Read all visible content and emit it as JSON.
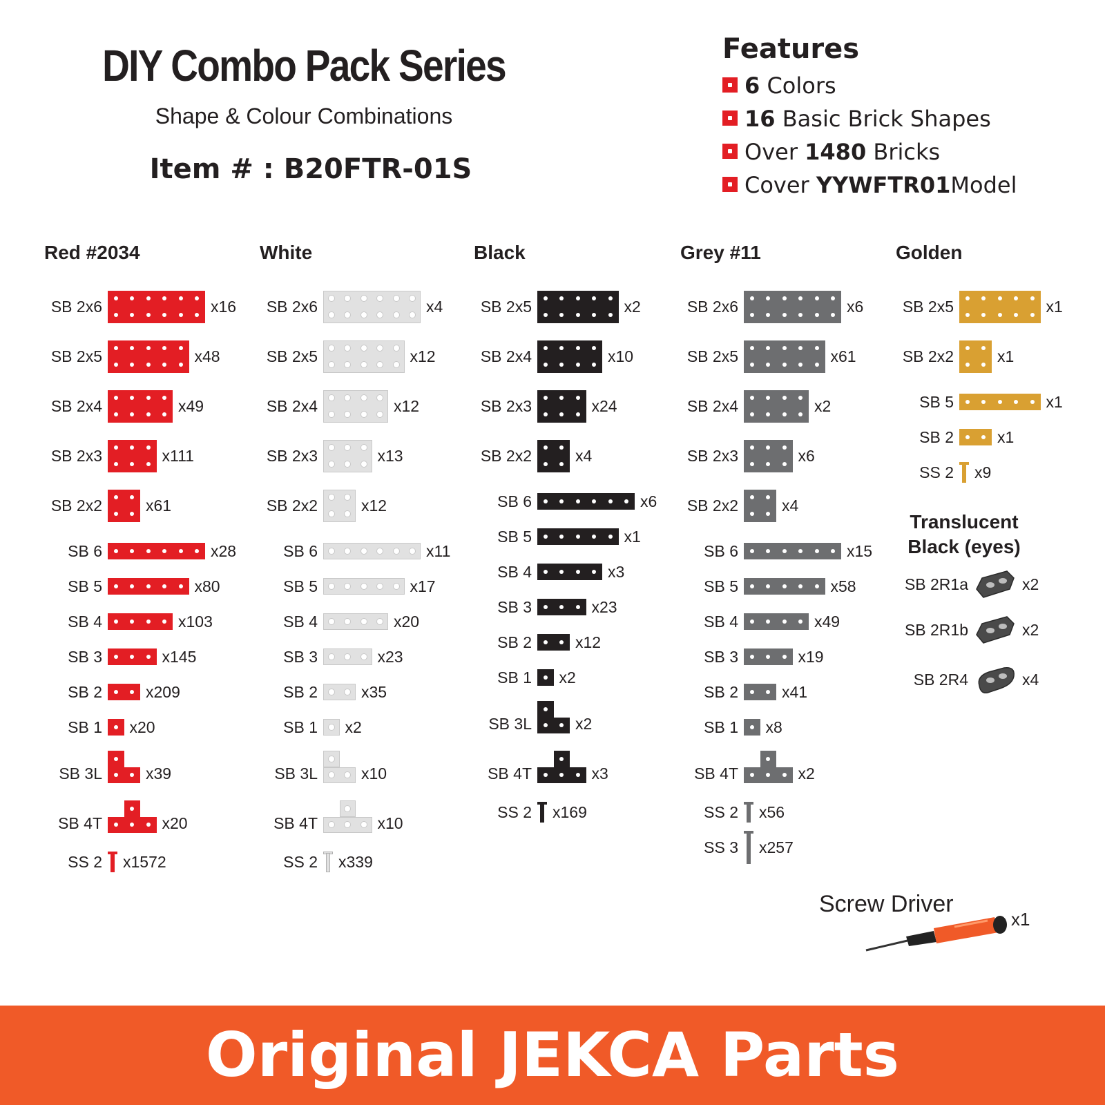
{
  "header": {
    "title": "DIY Combo Pack Series",
    "subtitle": "Shape & Colour Combinations",
    "item_number": "Item # : B20FTR-01S"
  },
  "features": {
    "title": "Features",
    "items": [
      {
        "bold": "6",
        "text": " Colors",
        "pre": ""
      },
      {
        "bold": "16",
        "text": " Basic Brick Shapes",
        "pre": ""
      },
      {
        "pre": "Over ",
        "bold": "1480",
        "text": " Bricks"
      },
      {
        "pre": "Cover ",
        "bold": "YYWFTR01",
        "text": "Model"
      }
    ],
    "bullet_color": "#e31e24"
  },
  "colors": {
    "red": "#e31e24",
    "white": "#e1e1e1",
    "black": "#231f20",
    "grey": "#6d6e70",
    "golden": "#d9a032",
    "translucent": "#4a4a4a"
  },
  "columns": [
    {
      "title": "Red #2034",
      "color_key": "red",
      "parts": [
        {
          "label": "SB 2x6",
          "shape": "2x6",
          "qty": "x16"
        },
        {
          "label": "SB 2x5",
          "shape": "2x5",
          "qty": "x48"
        },
        {
          "label": "SB 2x4",
          "shape": "2x4",
          "qty": "x49"
        },
        {
          "label": "SB 2x3",
          "shape": "2x3",
          "qty": "x111"
        },
        {
          "label": "SB 2x2",
          "shape": "2x2",
          "qty": "x61"
        },
        {
          "label": "SB 6",
          "shape": "6",
          "qty": "x28"
        },
        {
          "label": "SB 5",
          "shape": "5",
          "qty": "x80"
        },
        {
          "label": "SB 4",
          "shape": "4",
          "qty": "x103"
        },
        {
          "label": "SB 3",
          "shape": "3",
          "qty": "x145"
        },
        {
          "label": "SB 2",
          "shape": "2",
          "qty": "x209"
        },
        {
          "label": "SB 1",
          "shape": "1",
          "qty": "x20"
        },
        {
          "label": "SB 3L",
          "shape": "3L",
          "qty": "x39"
        },
        {
          "label": "SB 4T",
          "shape": "4T",
          "qty": "x20"
        },
        {
          "label": "SS 2",
          "shape": "SS2",
          "qty": "x1572"
        }
      ]
    },
    {
      "title": "White",
      "color_key": "white",
      "parts": [
        {
          "label": "SB 2x6",
          "shape": "2x6",
          "qty": "x4"
        },
        {
          "label": "SB 2x5",
          "shape": "2x5",
          "qty": "x12"
        },
        {
          "label": "SB 2x4",
          "shape": "2x4",
          "qty": "x12"
        },
        {
          "label": "SB 2x3",
          "shape": "2x3",
          "qty": "x13"
        },
        {
          "label": "SB 2x2",
          "shape": "2x2",
          "qty": "x12"
        },
        {
          "label": "SB 6",
          "shape": "6",
          "qty": "x11"
        },
        {
          "label": "SB 5",
          "shape": "5",
          "qty": "x17"
        },
        {
          "label": "SB 4",
          "shape": "4",
          "qty": "x20"
        },
        {
          "label": "SB 3",
          "shape": "3",
          "qty": "x23"
        },
        {
          "label": "SB 2",
          "shape": "2",
          "qty": "x35"
        },
        {
          "label": "SB 1",
          "shape": "1",
          "qty": "x2"
        },
        {
          "label": "SB 3L",
          "shape": "3L",
          "qty": "x10"
        },
        {
          "label": "SB 4T",
          "shape": "4T",
          "qty": "x10"
        },
        {
          "label": "SS 2",
          "shape": "SS2",
          "qty": "x339"
        }
      ]
    },
    {
      "title": "Black",
      "color_key": "black",
      "parts": [
        {
          "label": "SB 2x5",
          "shape": "2x5",
          "qty": "x2"
        },
        {
          "label": "SB 2x4",
          "shape": "2x4",
          "qty": "x10"
        },
        {
          "label": "SB 2x3",
          "shape": "2x3",
          "qty": "x24"
        },
        {
          "label": "SB 2x2",
          "shape": "2x2",
          "qty": "x4"
        },
        {
          "label": "SB 6",
          "shape": "6",
          "qty": "x6"
        },
        {
          "label": "SB 5",
          "shape": "5",
          "qty": "x1"
        },
        {
          "label": "SB 4",
          "shape": "4",
          "qty": "x3"
        },
        {
          "label": "SB 3",
          "shape": "3",
          "qty": "x23"
        },
        {
          "label": "SB 2",
          "shape": "2",
          "qty": "x12"
        },
        {
          "label": "SB 1",
          "shape": "1",
          "qty": "x2"
        },
        {
          "label": "SB 3L",
          "shape": "3L",
          "qty": "x2"
        },
        {
          "label": "SB 4T",
          "shape": "4T",
          "qty": "x3"
        },
        {
          "label": "SS 2",
          "shape": "SS2",
          "qty": "x169"
        }
      ]
    },
    {
      "title": "Grey #11",
      "color_key": "grey",
      "parts": [
        {
          "label": "SB 2x6",
          "shape": "2x6",
          "qty": "x6"
        },
        {
          "label": "SB 2x5",
          "shape": "2x5",
          "qty": "x61"
        },
        {
          "label": "SB 2x4",
          "shape": "2x4",
          "qty": "x2"
        },
        {
          "label": "SB 2x3",
          "shape": "2x3",
          "qty": "x6"
        },
        {
          "label": "SB 2x2",
          "shape": "2x2",
          "qty": "x4"
        },
        {
          "label": "SB 6",
          "shape": "6",
          "qty": "x15"
        },
        {
          "label": "SB 5",
          "shape": "5",
          "qty": "x58"
        },
        {
          "label": "SB 4",
          "shape": "4",
          "qty": "x49"
        },
        {
          "label": "SB 3",
          "shape": "3",
          "qty": "x19"
        },
        {
          "label": "SB 2",
          "shape": "2",
          "qty": "x41"
        },
        {
          "label": "SB 1",
          "shape": "1",
          "qty": "x8"
        },
        {
          "label": "SB 4T",
          "shape": "4T",
          "qty": "x2"
        },
        {
          "label": "SS 2",
          "shape": "SS2",
          "qty": "x56"
        },
        {
          "label": "SS 3",
          "shape": "SS3",
          "qty": "x257"
        }
      ]
    },
    {
      "title": "Golden",
      "color_key": "golden",
      "parts": [
        {
          "label": "SB 2x5",
          "shape": "2x5",
          "qty": "x1"
        },
        {
          "label": "SB 2x2",
          "shape": "2x2",
          "qty": "x1"
        },
        {
          "label": "SB 5",
          "shape": "5",
          "qty": "x1"
        },
        {
          "label": "SB 2",
          "shape": "2",
          "qty": "x1"
        },
        {
          "label": "SS 2",
          "shape": "SS2",
          "qty": "x9"
        }
      ]
    }
  ],
  "translucent": {
    "title_line1": "Translucent",
    "title_line2": "Black (eyes)",
    "parts": [
      {
        "label": "SB 2R1a",
        "qty": "x2"
      },
      {
        "label": "SB 2R1b",
        "qty": "x2"
      },
      {
        "label": "SB 2R4",
        "qty": "x4"
      }
    ]
  },
  "screwdriver": {
    "label": "Screw Driver",
    "qty": "x1"
  },
  "footer": {
    "text": "Original JEKCA Parts",
    "background": "#f05a28"
  }
}
